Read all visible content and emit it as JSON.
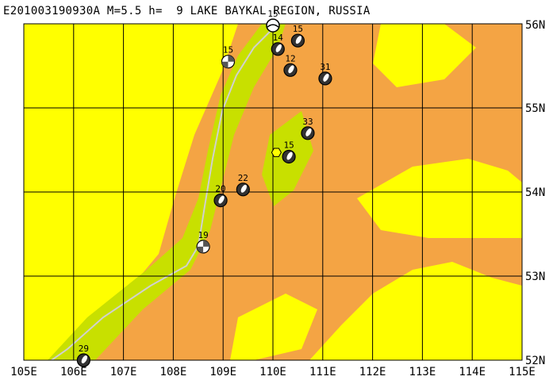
{
  "title": "E201003190930A M=5.5 h=  9 LAKE BAYKAL REGION, RUSSIA",
  "colors": {
    "low": "#ffff00",
    "mid": "#c8e000",
    "high": "#f4a444",
    "water": "#d0d0d0",
    "grid": "#000000"
  },
  "map": {
    "lon_range": [
      105,
      115
    ],
    "lat_range": [
      52,
      56
    ],
    "lon_labels": [
      "105E",
      "106E",
      "107E",
      "108E",
      "109E",
      "110E",
      "111E",
      "112E",
      "113E",
      "114E",
      "115E"
    ],
    "lat_labels": [
      "52N",
      "53N",
      "54N",
      "55N",
      "56N"
    ]
  },
  "mechanisms": [
    {
      "depth": "15",
      "lon": 110.0,
      "lat": 55.98,
      "symbol": "hollow"
    },
    {
      "depth": "15",
      "lon": 110.5,
      "lat": 55.8,
      "symbol": "dark"
    },
    {
      "depth": "14",
      "lon": 110.1,
      "lat": 55.7,
      "symbol": "dark"
    },
    {
      "depth": "15",
      "lon": 109.1,
      "lat": 55.55,
      "symbol": "quad"
    },
    {
      "depth": "12",
      "lon": 110.35,
      "lat": 55.45,
      "symbol": "dark"
    },
    {
      "depth": "31",
      "lon": 111.05,
      "lat": 55.35,
      "symbol": "dark"
    },
    {
      "depth": "33",
      "lon": 110.7,
      "lat": 54.7,
      "symbol": "dark"
    },
    {
      "depth": "15",
      "lon": 110.32,
      "lat": 54.42,
      "symbol": "dark"
    },
    {
      "depth": "22",
      "lon": 109.4,
      "lat": 54.03,
      "symbol": "dark"
    },
    {
      "depth": "20",
      "lon": 108.95,
      "lat": 53.9,
      "symbol": "dark"
    },
    {
      "depth": "19",
      "lon": 108.6,
      "lat": 53.35,
      "symbol": "quad"
    },
    {
      "depth": "29",
      "lon": 106.2,
      "lat": 52.0,
      "symbol": "dark"
    }
  ],
  "epicenter": {
    "lon": 110.07,
    "lat": 54.47
  }
}
